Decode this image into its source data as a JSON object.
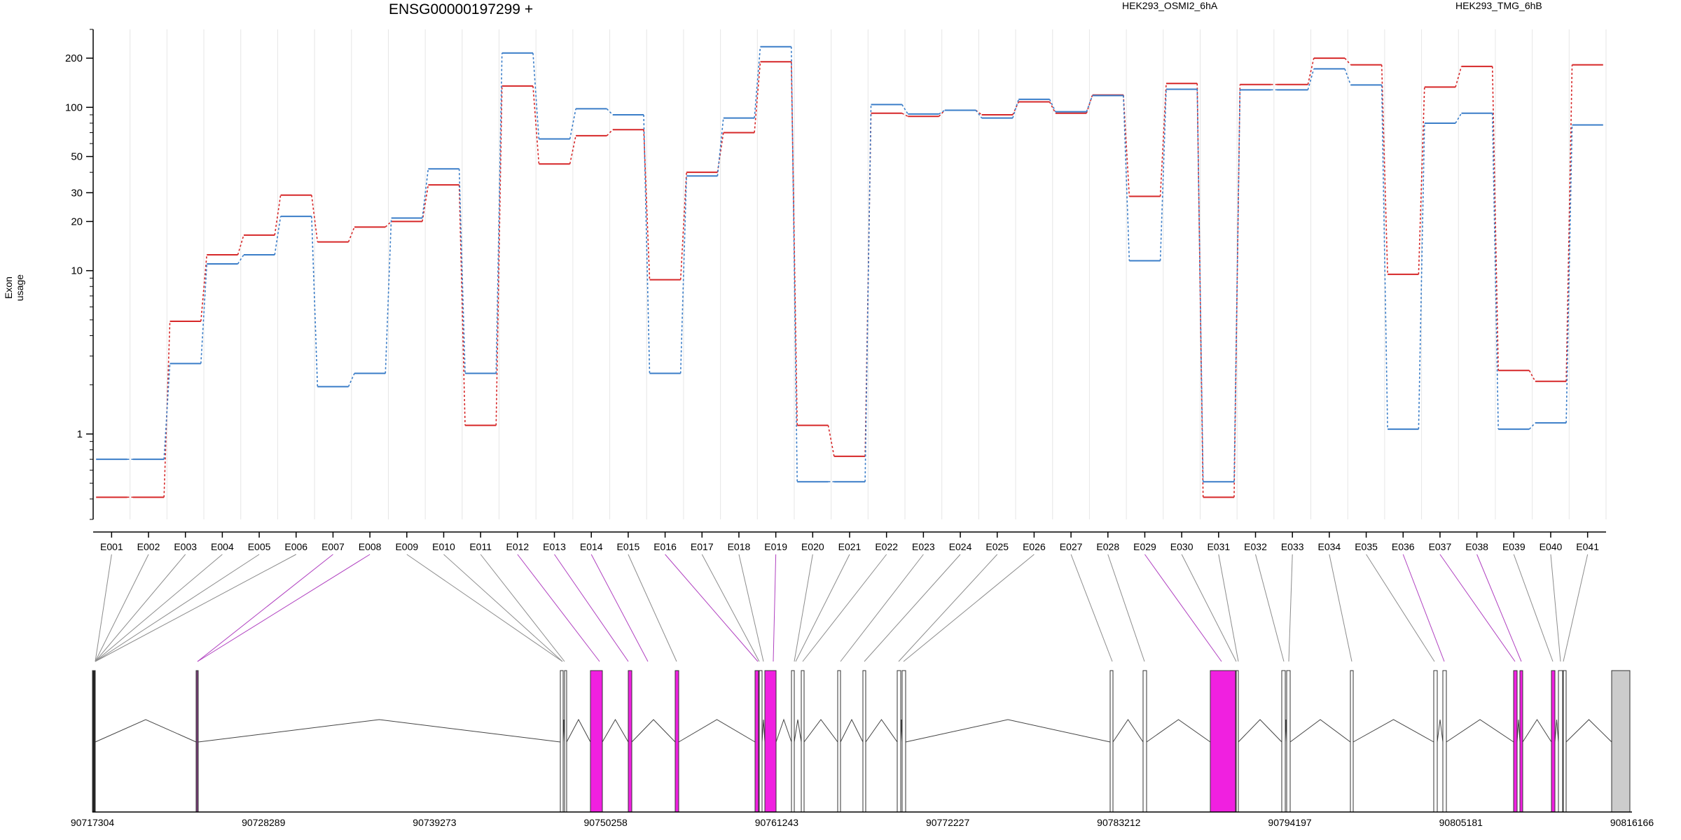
{
  "colors": {
    "series_a": "#d62728",
    "series_b": "#3a7dc8",
    "grid": "#e6e6e6",
    "exon_highlight": "#f020e0",
    "exon_plain": "#ffffff",
    "exon_last": "#cccccc",
    "connector_gray": "#8c8c8c",
    "connector_magenta": "#b040c0"
  },
  "chart_data": {
    "type": "line",
    "title": "ENSG00000197299 +",
    "ylabel": "Exon usage",
    "xlabel": "",
    "y_scale": "log",
    "ylim": [
      0.3,
      300
    ],
    "y_ticks": [
      1,
      10,
      20,
      30,
      50,
      100,
      200
    ],
    "y_tick_labels": [
      "1",
      "10",
      "20",
      "30",
      "50",
      "100",
      "200"
    ],
    "grid": "vertical lines at exon boundaries",
    "legend_position": "top",
    "categories": [
      "E001",
      "E002",
      "E003",
      "E004",
      "E005",
      "E006",
      "E007",
      "E008",
      "E009",
      "E010",
      "E011",
      "E012",
      "E013",
      "E014",
      "E015",
      "E016",
      "E017",
      "E018",
      "E019",
      "E020",
      "E021",
      "E022",
      "E023",
      "E024",
      "E025",
      "E026",
      "E027",
      "E028",
      "E029",
      "E030",
      "E031",
      "E032",
      "E033",
      "E034",
      "E035",
      "E036",
      "E037",
      "E038",
      "E039",
      "E040",
      "E041"
    ],
    "series": [
      {
        "name": "HEK293_OSMI2_6hA",
        "color": "#d62728",
        "values": [
          0.41,
          0.41,
          4.9,
          12.5,
          16.5,
          29,
          15,
          18.5,
          20,
          33.5,
          1.13,
          135,
          45,
          67,
          73,
          8.8,
          40,
          70,
          190,
          1.13,
          0.73,
          92,
          88,
          96,
          90,
          108,
          92,
          119,
          28.5,
          140,
          0.41,
          138,
          138,
          200,
          182,
          9.5,
          133,
          178,
          2.45,
          2.1,
          182
        ]
      },
      {
        "name": "HEK293_TMG_6hB",
        "color": "#3a7dc8",
        "values": [
          0.7,
          0.7,
          2.7,
          11,
          12.5,
          21.5,
          1.95,
          2.35,
          21,
          42,
          2.35,
          215,
          64,
          98,
          90,
          2.35,
          38,
          86,
          235,
          0.51,
          0.51,
          104,
          91,
          96,
          86,
          112,
          94,
          118,
          11.5,
          129,
          0.51,
          128,
          128,
          172,
          137,
          1.07,
          80,
          92,
          1.07,
          1.17,
          78
        ]
      }
    ]
  },
  "gene_model": {
    "coordinates": [
      "90717304",
      "90728289",
      "90739273",
      "90750258",
      "90761243",
      "90772227",
      "90783212",
      "90794197",
      "90805181",
      "90816166"
    ],
    "highlighted_exons": [
      "E007",
      "E008",
      "E012",
      "E013",
      "E014",
      "E016",
      "E019",
      "E029",
      "E036",
      "E037",
      "E038"
    ]
  }
}
